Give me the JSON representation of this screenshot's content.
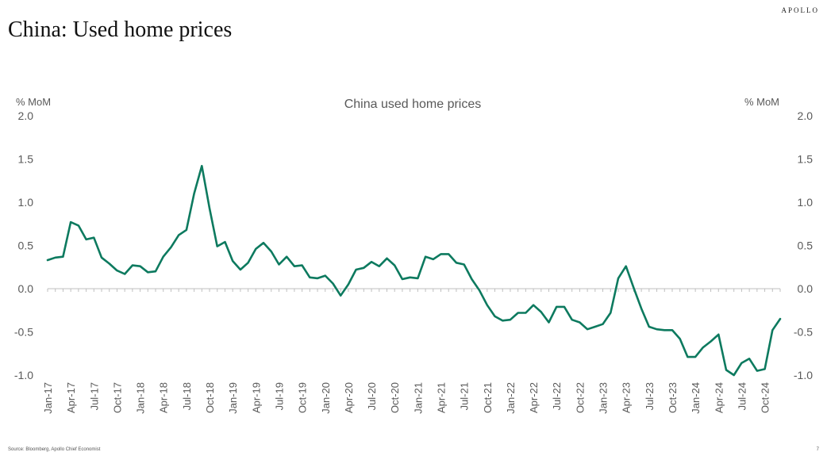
{
  "header": {
    "brand": "APOLLO",
    "title": "China: Used home prices"
  },
  "footer": {
    "source": "Source: Bloomberg, Apollo Chief Economist",
    "page_number": "7"
  },
  "colors": {
    "line": "#0d7a5f",
    "axis": "#bfbfbf",
    "text": "#595959"
  },
  "chart_data": {
    "type": "line",
    "title": "China used home prices",
    "ylabel_left": "% MoM",
    "ylabel_right": "% MoM",
    "ylim": [
      -1.0,
      2.0
    ],
    "yticks": [
      "2.0",
      "1.5",
      "1.0",
      "0.5",
      "0.0",
      "-0.5",
      "-1.0"
    ],
    "ytick_values": [
      2.0,
      1.5,
      1.0,
      0.5,
      0.0,
      -0.5,
      -1.0
    ],
    "xticks": [
      "Jan-17",
      "Apr-17",
      "Jul-17",
      "Oct-17",
      "Jan-18",
      "Apr-18",
      "Jul-18",
      "Oct-18",
      "Jan-19",
      "Apr-19",
      "Jul-19",
      "Oct-19",
      "Jan-20",
      "Apr-20",
      "Jul-20",
      "Oct-20",
      "Jan-21",
      "Apr-21",
      "Jul-21",
      "Oct-21",
      "Jan-22",
      "Apr-22",
      "Jul-22",
      "Oct-22",
      "Jan-23",
      "Apr-23",
      "Jul-23",
      "Oct-23",
      "Jan-24",
      "Apr-24",
      "Jul-24",
      "Oct-24"
    ],
    "series": [
      {
        "name": "China used home prices",
        "start": "Jan-17",
        "values": [
          0.33,
          0.36,
          0.37,
          0.77,
          0.73,
          0.57,
          0.59,
          0.36,
          0.29,
          0.21,
          0.17,
          0.27,
          0.26,
          0.19,
          0.2,
          0.37,
          0.48,
          0.62,
          0.68,
          1.1,
          1.42,
          0.93,
          0.49,
          0.54,
          0.32,
          0.22,
          0.3,
          0.46,
          0.53,
          0.43,
          0.28,
          0.37,
          0.26,
          0.27,
          0.13,
          0.12,
          0.15,
          0.06,
          -0.08,
          0.05,
          0.22,
          0.24,
          0.31,
          0.26,
          0.35,
          0.27,
          0.11,
          0.13,
          0.12,
          0.37,
          0.34,
          0.4,
          0.4,
          0.3,
          0.28,
          0.11,
          -0.02,
          -0.19,
          -0.32,
          -0.37,
          -0.36,
          -0.28,
          -0.28,
          -0.19,
          -0.27,
          -0.39,
          -0.21,
          -0.21,
          -0.36,
          -0.39,
          -0.47,
          -0.44,
          -0.41,
          -0.28,
          0.12,
          0.26,
          0.01,
          -0.23,
          -0.44,
          -0.47,
          -0.48,
          -0.48,
          -0.58,
          -0.79,
          -0.79,
          -0.68,
          -0.61,
          -0.53,
          -0.94,
          -1.0,
          -0.86,
          -0.81,
          -0.95,
          -0.93,
          -0.48,
          -0.35
        ]
      }
    ]
  }
}
